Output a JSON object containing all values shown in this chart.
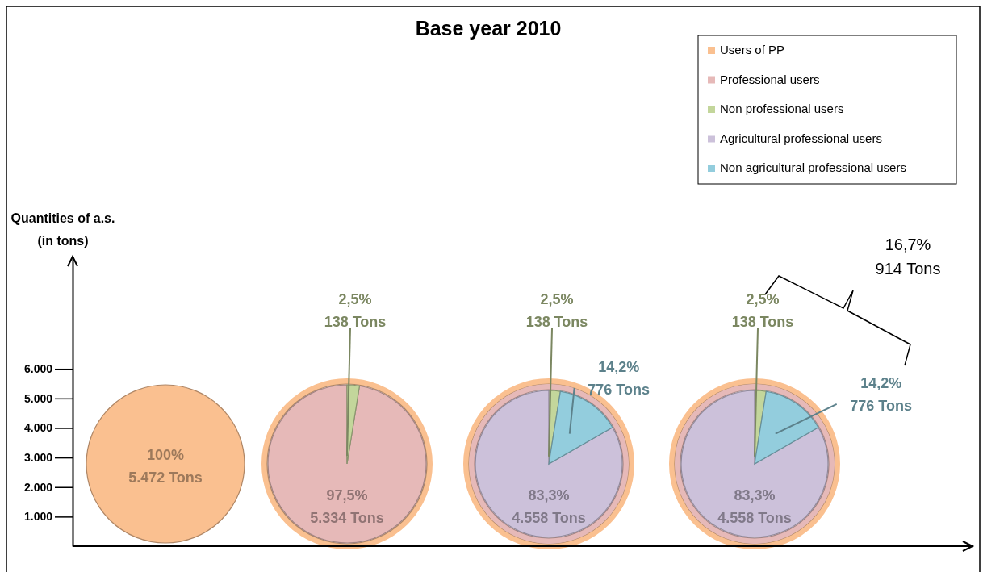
{
  "chart_data": [
    {
      "type": "pie",
      "title": "Base year 2010",
      "legend": "top right",
      "categories": [
        "Users of PP",
        "Professional users",
        "Non professional users",
        "Agricultural professional users",
        "Non agricultural professional users"
      ],
      "colors": [
        "#fac090",
        "#e6b9b8",
        "#c3d69b",
        "#ccc1da",
        "#93cddd"
      ],
      "series": [
        {
          "values": [
            5472,
            null,
            null,
            null,
            null
          ],
          "value_labels": [
            "100%\n5.472 Tons",
            null,
            null,
            null,
            null
          ]
        },
        {
          "values": [
            null,
            5334,
            138,
            null,
            null
          ],
          "value_labels": [
            null,
            "97,5%\n5.334 Tons",
            "2,5%\n138 Tons",
            null,
            null
          ]
        },
        {
          "values": [
            null,
            null,
            138,
            4558,
            776
          ],
          "value_labels": [
            null,
            null,
            "2,5%\n138 Tons",
            "83,3%\n4.558 Tons",
            "14,2%\n776 Tons"
          ]
        },
        {
          "values": [
            null,
            null,
            138,
            4558,
            776
          ],
          "value_labels": [
            null,
            null,
            "2,5%\n138 Tons",
            "83,3%\n4.558 Tons",
            "14,2%\n776 Tons"
          ]
        }
      ],
      "annotations": [
        "16,7%\n914 Tons"
      ]
    },
    {
      "type": "bar",
      "ylabel": "Quantities of a.s.\n(in tons)",
      "ylim": [
        0,
        9800
      ],
      "yticks": [
        {
          "value": 1000,
          "label": "1.000"
        },
        {
          "value": 2000,
          "label": "2.000"
        },
        {
          "value": 3000,
          "label": "3.000"
        },
        {
          "value": 4000,
          "label": "4.000"
        },
        {
          "value": 5000,
          "label": "5.000"
        },
        {
          "value": 6000,
          "label": "6.000"
        }
      ],
      "categories": [
        null,
        null,
        null,
        null
      ],
      "values": [
        null,
        null,
        null,
        null
      ]
    }
  ]
}
